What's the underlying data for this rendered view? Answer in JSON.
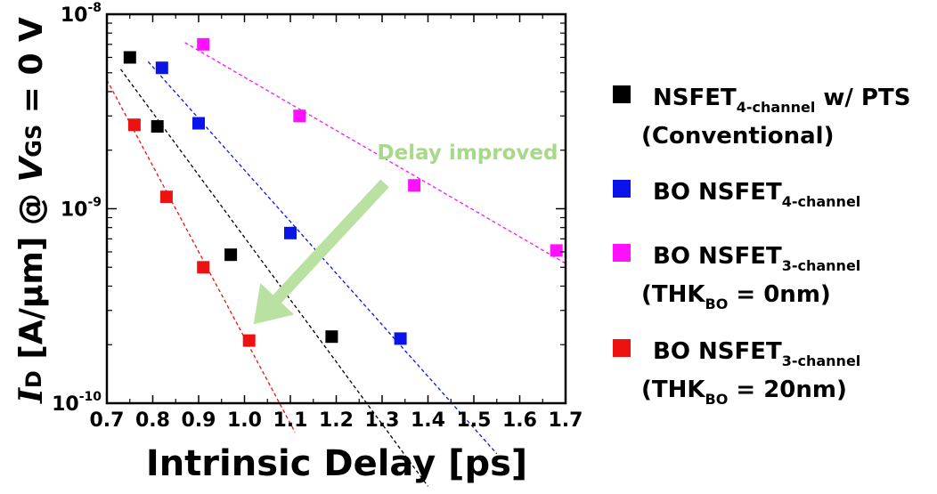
{
  "chart_data": {
    "type": "scatter",
    "xlabel": "Intrinsic Delay [ps]",
    "ylabel": {
      "i": "I",
      "i_sub": "D",
      "mid": " [A/μm] @ ",
      "v": "V",
      "v_sub": "GS",
      "end": " = 0 V"
    },
    "xlim": [
      0.7,
      1.7
    ],
    "ylim": [
      1e-10,
      1e-08
    ],
    "ylog": true,
    "x_ticks": [
      "0.7",
      "0.8",
      "0.9",
      "1.0",
      "1.1",
      "1.2",
      "1.3",
      "1.4",
      "1.5",
      "1.6",
      "1.7"
    ],
    "y_ticks": [
      {
        "base": "10",
        "exp": "-8"
      },
      {
        "base": "10",
        "exp": "-9"
      },
      {
        "base": "10",
        "exp": "-10"
      }
    ],
    "grid": false,
    "legend_position": "right",
    "annotation": "Delay improved",
    "annotation_color": "#a8d98a",
    "series": [
      {
        "color": "#000000",
        "legend": [
          {
            "main": "NSFET",
            "sub": "4-channel",
            "suffix": " w/ PTS"
          },
          {
            "main": "(Conventional)",
            "sub": "",
            "suffix": ""
          }
        ],
        "x": [
          0.75,
          0.81,
          0.97,
          1.19
        ],
        "y": [
          6e-09,
          2.65e-09,
          5.8e-10,
          2.2e-10
        ],
        "fit_x": [
          0.73,
          1.4
        ]
      },
      {
        "color": "#0a14e8",
        "legend": [
          {
            "main": "BO NSFET",
            "sub": "4-channel",
            "suffix": ""
          }
        ],
        "x": [
          0.82,
          0.9,
          1.1,
          1.34
        ],
        "y": [
          5.3e-09,
          2.75e-09,
          7.5e-10,
          2.15e-10
        ],
        "fit_x": [
          0.79,
          1.55
        ]
      },
      {
        "color": "#ff10ff",
        "legend": [
          {
            "main": "BO NSFET",
            "sub": "3-channel",
            "suffix": ""
          },
          {
            "main": "(THK",
            "sub": "BO",
            "suffix": " = 0nm)"
          }
        ],
        "x": [
          0.91,
          1.12,
          1.37,
          1.68
        ],
        "y": [
          7e-09,
          3e-09,
          1.32e-09,
          6.1e-10
        ],
        "fit_x": [
          0.87,
          1.7
        ]
      },
      {
        "color": "#ee1111",
        "legend": [
          {
            "main": "BO NSFET",
            "sub": "3-channel",
            "suffix": ""
          },
          {
            "main": "(THK",
            "sub": "BO",
            "suffix": " = 20nm)"
          }
        ],
        "x": [
          0.76,
          0.83,
          0.91,
          1.01
        ],
        "y": [
          2.7e-09,
          1.15e-09,
          5e-10,
          2.1e-10
        ],
        "fit_x": [
          0.7,
          1.11
        ]
      }
    ]
  }
}
